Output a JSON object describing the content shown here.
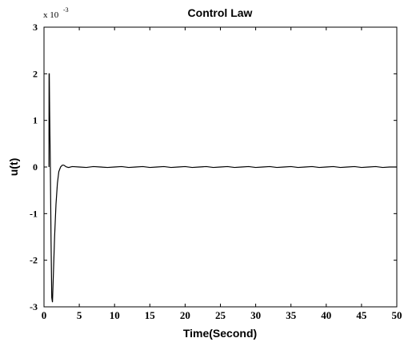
{
  "chart_data": {
    "type": "line",
    "title": "Control Law",
    "xlabel": "Time(Second)",
    "ylabel": "u(t)",
    "xlim": [
      0,
      50
    ],
    "ylim": [
      -3,
      3
    ],
    "y_multiplier_label": {
      "base": "x 10",
      "exponent": "-3"
    },
    "xticks": [
      0,
      5,
      10,
      15,
      20,
      25,
      30,
      35,
      40,
      45,
      50
    ],
    "yticks": [
      -3,
      -2,
      -1,
      0,
      1,
      2,
      3
    ],
    "xtick_labels": [
      "0",
      "5",
      "10",
      "15",
      "20",
      "25",
      "30",
      "35",
      "40",
      "45",
      "50"
    ],
    "ytick_labels": [
      "-3",
      "-2",
      "-1",
      "0",
      "1",
      "2",
      "3"
    ],
    "grid": false,
    "series": [
      {
        "color": "#000000",
        "x": [
          0.7,
          0.72,
          0.75,
          0.8,
          0.9,
          1.0,
          1.1,
          1.2,
          1.35,
          1.5,
          1.7,
          1.9,
          2.1,
          2.35,
          2.6,
          2.8,
          3.0,
          3.2,
          3.5,
          4.0,
          5.0,
          6.0,
          7.0,
          8.0,
          9.0,
          10.0,
          11.0,
          12.0,
          13.0,
          14.0,
          15.0,
          16.0,
          17.0,
          18.0,
          19.0,
          20.0,
          21.0,
          22.0,
          23.0,
          24.0,
          25.0,
          26.0,
          27.0,
          28.0,
          29.0,
          30.0,
          31.0,
          32.0,
          33.0,
          34.0,
          35.0,
          36.0,
          37.0,
          38.0,
          39.0,
          40.0,
          41.0,
          42.0,
          43.0,
          44.0,
          45.0,
          46.0,
          47.0,
          48.0,
          49.0,
          50.0
        ],
        "y": [
          0.0,
          2.0,
          2.0,
          1.2,
          0.0,
          -1.6,
          -2.8,
          -2.9,
          -2.2,
          -1.5,
          -0.8,
          -0.35,
          -0.1,
          0.0,
          0.04,
          0.04,
          0.02,
          0.0,
          -0.01,
          0.01,
          0.0,
          -0.01,
          0.01,
          0.0,
          -0.01,
          0.0,
          0.01,
          -0.01,
          0.0,
          0.01,
          -0.01,
          0.0,
          0.01,
          -0.01,
          0.0,
          0.01,
          -0.01,
          0.0,
          0.01,
          -0.01,
          0.0,
          0.01,
          -0.01,
          0.0,
          0.01,
          -0.01,
          0.0,
          0.01,
          -0.01,
          0.0,
          0.01,
          -0.01,
          0.0,
          0.01,
          -0.01,
          0.0,
          0.01,
          -0.01,
          0.0,
          0.01,
          -0.01,
          0.0,
          0.01,
          -0.01,
          0.0,
          0.0
        ]
      }
    ]
  }
}
